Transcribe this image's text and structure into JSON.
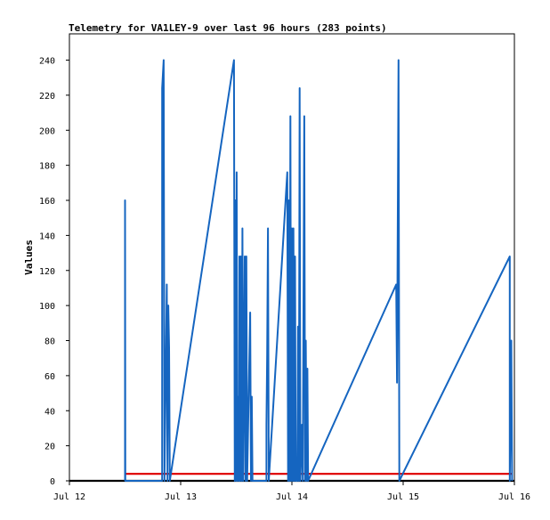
{
  "chart_data": {
    "type": "line",
    "title": "Telemetry for VA1LEY-9 over last 96 hours (283 points)",
    "xlabel": "",
    "ylabel": "Values",
    "x_ticks": [
      "Jul 12",
      "Jul 13",
      "Jul 14",
      "Jul 15",
      "Jul 16"
    ],
    "y_ticks": [
      "0",
      "20",
      "40",
      "60",
      "80",
      "100",
      "120",
      "140",
      "160",
      "180",
      "200",
      "220",
      "240"
    ],
    "xlim": [
      "2024-07-12 00:00",
      "2024-07-16 00:00"
    ],
    "ylim": [
      0,
      255
    ],
    "grid": false,
    "series": [
      {
        "color": "#1565c0",
        "points": [
          [
            "2024-07-12 12:00",
            0
          ],
          [
            "2024-07-12 12:00",
            160
          ],
          [
            "2024-07-12 12:03",
            0
          ],
          [
            "2024-07-12 20:00",
            0
          ],
          [
            "2024-07-12 20:00",
            224
          ],
          [
            "2024-07-12 20:20",
            240
          ],
          [
            "2024-07-12 20:30",
            0
          ],
          [
            "2024-07-12 21:00",
            112
          ],
          [
            "2024-07-12 21:10",
            0
          ],
          [
            "2024-07-12 21:20",
            100
          ],
          [
            "2024-07-12 21:30",
            76
          ],
          [
            "2024-07-12 21:40",
            0
          ],
          [
            "2024-07-13 11:30",
            240
          ],
          [
            "2024-07-13 11:40",
            0
          ],
          [
            "2024-07-13 11:50",
            160
          ],
          [
            "2024-07-13 12:00",
            0
          ],
          [
            "2024-07-13 12:05",
            176
          ],
          [
            "2024-07-13 12:15",
            0
          ],
          [
            "2024-07-13 12:25",
            48
          ],
          [
            "2024-07-13 12:35",
            0
          ],
          [
            "2024-07-13 12:40",
            128
          ],
          [
            "2024-07-13 12:50",
            0
          ],
          [
            "2024-07-13 13:00",
            128
          ],
          [
            "2024-07-13 13:10",
            0
          ],
          [
            "2024-07-13 13:20",
            144
          ],
          [
            "2024-07-13 13:30",
            0
          ],
          [
            "2024-07-13 13:40",
            64
          ],
          [
            "2024-07-13 13:50",
            128
          ],
          [
            "2024-07-13 14:00",
            0
          ],
          [
            "2024-07-13 14:10",
            128
          ],
          [
            "2024-07-13 14:20",
            0
          ],
          [
            "2024-07-13 15:00",
            96
          ],
          [
            "2024-07-13 15:10",
            0
          ],
          [
            "2024-07-13 15:20",
            48
          ],
          [
            "2024-07-13 15:30",
            0
          ],
          [
            "2024-07-13 18:30",
            0
          ],
          [
            "2024-07-13 18:30",
            32
          ],
          [
            "2024-07-13 18:40",
            72
          ],
          [
            "2024-07-13 18:50",
            144
          ],
          [
            "2024-07-13 19:00",
            0
          ],
          [
            "2024-07-13 23:00",
            176
          ],
          [
            "2024-07-13 23:10",
            0
          ],
          [
            "2024-07-13 23:20",
            160
          ],
          [
            "2024-07-13 23:30",
            0
          ],
          [
            "2024-07-13 23:40",
            208
          ],
          [
            "2024-07-13 23:50",
            0
          ],
          [
            "2024-07-14 00:00",
            144
          ],
          [
            "2024-07-14 00:10",
            0
          ],
          [
            "2024-07-14 00:20",
            144
          ],
          [
            "2024-07-14 00:30",
            0
          ],
          [
            "2024-07-14 00:40",
            128
          ],
          [
            "2024-07-14 00:50",
            0
          ],
          [
            "2024-07-14 01:10",
            0
          ],
          [
            "2024-07-14 01:20",
            88
          ],
          [
            "2024-07-14 01:30",
            0
          ],
          [
            "2024-07-14 01:40",
            224
          ],
          [
            "2024-07-14 01:50",
            0
          ],
          [
            "2024-07-14 02:10",
            32
          ],
          [
            "2024-07-14 02:20",
            0
          ],
          [
            "2024-07-14 02:40",
            208
          ],
          [
            "2024-07-14 02:50",
            0
          ],
          [
            "2024-07-14 03:00",
            80
          ],
          [
            "2024-07-14 03:10",
            0
          ],
          [
            "2024-07-14 03:20",
            64
          ],
          [
            "2024-07-14 03:30",
            0
          ],
          [
            "2024-07-14 22:30",
            112
          ],
          [
            "2024-07-14 22:40",
            56
          ],
          [
            "2024-07-14 22:50",
            144
          ],
          [
            "2024-07-14 23:00",
            240
          ],
          [
            "2024-07-14 23:10",
            0
          ],
          [
            "2024-07-15 23:00",
            128
          ],
          [
            "2024-07-15 23:00",
            0
          ],
          [
            "2024-07-15 23:10",
            40
          ],
          [
            "2024-07-15 23:20",
            80
          ],
          [
            "2024-07-15 23:30",
            0
          ]
        ]
      },
      {
        "color": "#e00000",
        "points": [
          [
            "2024-07-12 12:00",
            4
          ],
          [
            "2024-07-15 23:30",
            4
          ]
        ]
      },
      {
        "color": "#000000",
        "points": [
          [
            "2024-07-12 00:00",
            0
          ],
          [
            "2024-07-16 00:00",
            0
          ]
        ]
      }
    ]
  }
}
